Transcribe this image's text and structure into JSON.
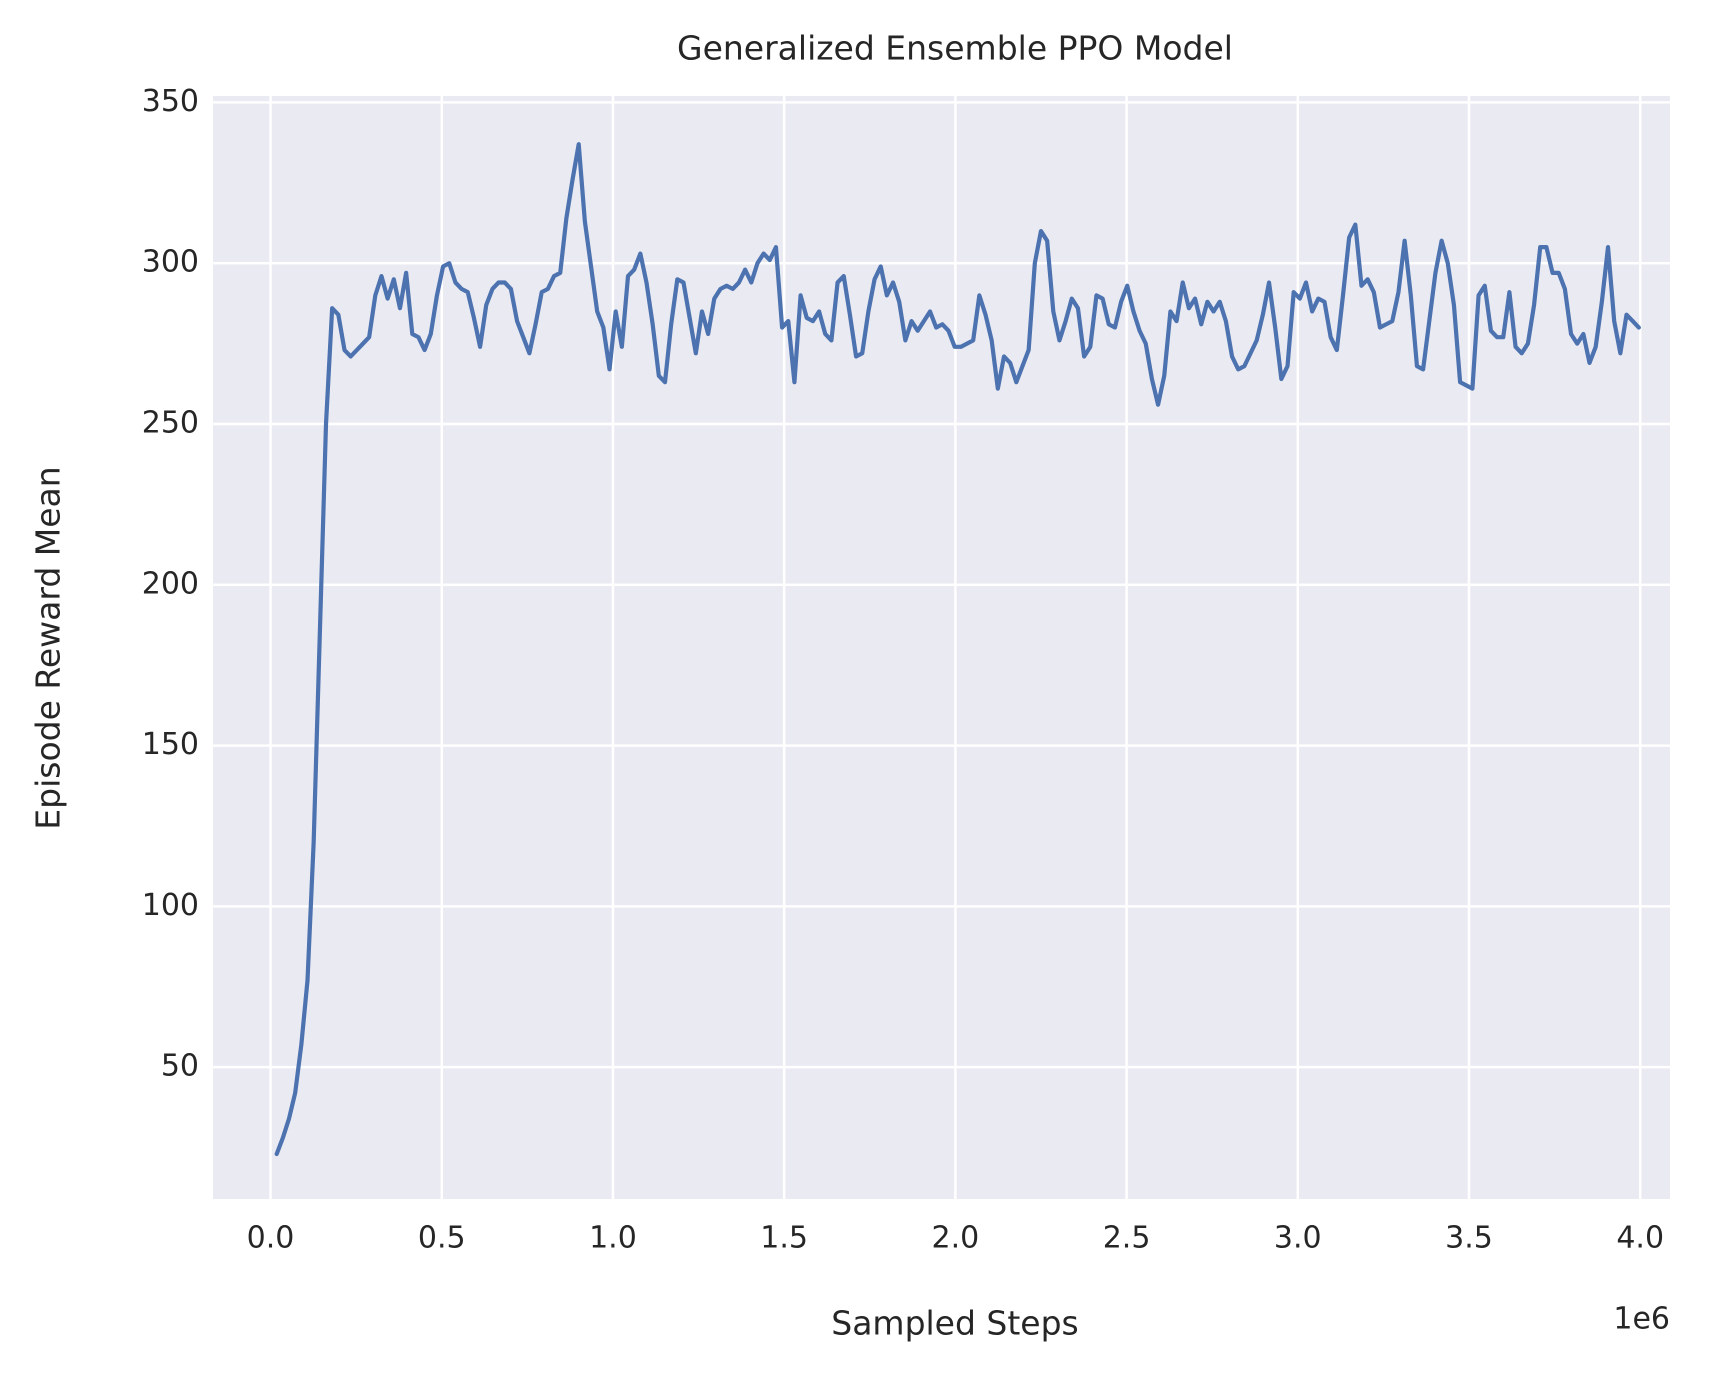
{
  "chart_data": {
    "type": "line",
    "title": "Generalized Ensemble PPO Model",
    "x_label": "Sampled Steps",
    "y_label": "Episode Reward Mean",
    "x_offset_label": "1e6",
    "grid": true,
    "background": "#eaeaf2",
    "xlim": [
      -168000,
      4087000
    ],
    "ylim": [
      9,
      352
    ],
    "xticks": [
      {
        "value": 0,
        "label": "0.0"
      },
      {
        "value": 500000,
        "label": "0.5"
      },
      {
        "value": 1000000,
        "label": "1.0"
      },
      {
        "value": 1500000,
        "label": "1.5"
      },
      {
        "value": 2000000,
        "label": "2.0"
      },
      {
        "value": 2500000,
        "label": "2.5"
      },
      {
        "value": 3000000,
        "label": "3.0"
      },
      {
        "value": 3500000,
        "label": "3.5"
      },
      {
        "value": 4000000,
        "label": "4.0"
      }
    ],
    "yticks": [
      50,
      100,
      150,
      200,
      250,
      300,
      350
    ],
    "x": [
      18000,
      36000,
      54000,
      72000,
      90000,
      108000,
      126000,
      144000,
      162000,
      180000,
      198000,
      216000,
      234000,
      252000,
      270000,
      288000,
      306000,
      324000,
      342000,
      360000,
      378000,
      396000,
      414000,
      432000,
      450000,
      468000,
      486000,
      504000,
      522000,
      540000,
      558000,
      576000,
      594000,
      612000,
      630000,
      648000,
      666000,
      684000,
      702000,
      720000,
      738000,
      756000,
      774000,
      792000,
      810000,
      828000,
      846000,
      864000,
      882000,
      900000,
      918000,
      936000,
      954000,
      972000,
      990000,
      1008000,
      1026000,
      1044000,
      1062000,
      1080000,
      1098000,
      1116000,
      1134000,
      1152000,
      1170000,
      1188000,
      1206000,
      1224000,
      1242000,
      1260000,
      1278000,
      1296000,
      1314000,
      1332000,
      1350000,
      1368000,
      1386000,
      1404000,
      1422000,
      1440000,
      1458000,
      1476000,
      1494000,
      1512000,
      1530000,
      1548000,
      1566000,
      1584000,
      1602000,
      1620000,
      1638000,
      1656000,
      1674000,
      1692000,
      1710000,
      1728000,
      1746000,
      1764000,
      1782000,
      1800000,
      1818000,
      1836000,
      1854000,
      1872000,
      1890000,
      1908000,
      1926000,
      1944000,
      1962000,
      1980000,
      1998000,
      2016000,
      2034000,
      2052000,
      2070000,
      2088000,
      2106000,
      2124000,
      2142000,
      2160000,
      2178000,
      2196000,
      2214000,
      2232000,
      2250000,
      2268000,
      2286000,
      2304000,
      2322000,
      2340000,
      2358000,
      2376000,
      2394000,
      2412000,
      2430000,
      2448000,
      2466000,
      2484000,
      2502000,
      2520000,
      2538000,
      2556000,
      2574000,
      2592000,
      2610000,
      2628000,
      2646000,
      2664000,
      2682000,
      2700000,
      2718000,
      2736000,
      2754000,
      2772000,
      2790000,
      2808000,
      2826000,
      2844000,
      2862000,
      2880000,
      2898000,
      2916000,
      2934000,
      2952000,
      2970000,
      2988000,
      3006000,
      3024000,
      3042000,
      3060000,
      3078000,
      3096000,
      3114000,
      3132000,
      3150000,
      3168000,
      3186000,
      3204000,
      3222000,
      3240000,
      3258000,
      3276000,
      3294000,
      3312000,
      3330000,
      3348000,
      3366000,
      3384000,
      3402000,
      3420000,
      3438000,
      3456000,
      3474000,
      3492000,
      3510000,
      3528000,
      3546000,
      3564000,
      3582000,
      3600000,
      3618000,
      3636000,
      3654000,
      3672000,
      3690000,
      3708000,
      3726000,
      3744000,
      3762000,
      3780000,
      3798000,
      3816000,
      3834000,
      3852000,
      3870000,
      3888000,
      3906000,
      3924000,
      3942000,
      3960000,
      3978000,
      3996000
    ],
    "series": [
      {
        "color": "#4c72b0",
        "values": [
          23,
          28,
          34,
          42,
          57,
          77,
          120,
          185,
          250,
          286,
          284,
          273,
          271,
          273,
          275,
          277,
          290,
          296,
          289,
          295,
          286,
          297,
          278,
          277,
          273,
          278,
          290,
          299,
          300,
          294,
          292,
          291,
          283,
          274,
          287,
          292,
          294,
          294,
          292,
          282,
          277,
          272,
          281,
          291,
          292,
          296,
          297,
          314,
          326,
          337,
          313,
          299,
          285,
          280,
          267,
          285,
          274,
          296,
          298,
          303,
          294,
          281,
          265,
          263,
          281,
          295,
          294,
          283,
          272,
          285,
          278,
          289,
          292,
          293,
          292,
          294,
          298,
          294,
          300,
          303,
          301,
          305,
          280,
          282,
          263,
          290,
          283,
          282,
          285,
          278,
          276,
          294,
          296,
          284,
          271,
          272,
          285,
          295,
          299,
          290,
          294,
          288,
          276,
          282,
          279,
          282,
          285,
          280,
          281,
          279,
          274,
          274,
          275,
          276,
          290,
          284,
          276,
          261,
          271,
          269,
          263,
          268,
          273,
          300,
          310,
          307,
          285,
          276,
          282,
          289,
          286,
          271,
          274,
          290,
          289,
          281,
          280,
          288,
          293,
          285,
          279,
          275,
          264,
          256,
          265,
          285,
          282,
          294,
          286,
          289,
          281,
          288,
          285,
          288,
          282,
          271,
          267,
          268,
          272,
          276,
          284,
          294,
          280,
          264,
          268,
          291,
          289,
          294,
          285,
          289,
          288,
          277,
          273,
          290,
          308,
          312,
          293,
          295,
          291,
          280,
          281,
          282,
          291,
          307,
          290,
          268,
          267,
          282,
          297,
          307,
          300,
          287,
          263,
          262,
          261,
          290,
          293,
          279,
          277,
          277,
          291,
          274,
          272,
          275,
          287,
          305,
          305,
          297,
          297,
          292,
          278,
          275,
          278,
          269,
          274,
          288,
          305,
          282,
          272,
          284,
          282,
          280
        ]
      }
    ]
  }
}
